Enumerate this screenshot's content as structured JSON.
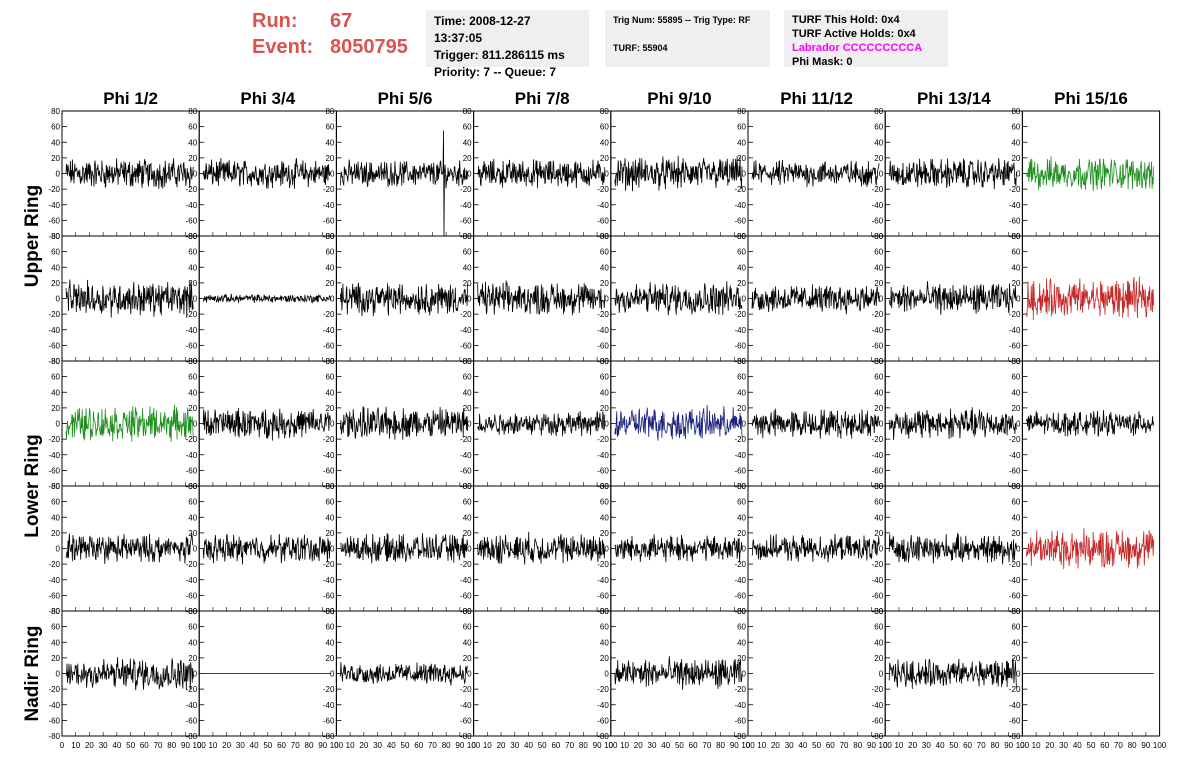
{
  "header": {
    "run_label": "Run:",
    "run_value": "67",
    "event_label": "Event:",
    "event_value": "8050795",
    "run_color": "#d9534f",
    "time": "Time: 2008-12-27 13:37:05",
    "trigger": "Trigger: 811.286115 ms",
    "priority": "Priority: 7 -- Queue: 7",
    "trig_num": "Trig Num: 55895 -- Trig Type: RF",
    "turf": "TURF: 55904",
    "turf_this_hold": "TURF This Hold: 0x4",
    "turf_active_holds": "TURF Active Holds: 0x4",
    "labrador": "Labrador CCCCCCCCCA",
    "labrador_color": "#ff00ff",
    "phi_mask": "Phi Mask: 0"
  },
  "chart_data": {
    "type": "line",
    "columns": [
      "Phi 1/2",
      "Phi 3/4",
      "Phi 5/6",
      "Phi 7/8",
      "Phi 9/10",
      "Phi 11/12",
      "Phi 13/14",
      "Phi 15/16"
    ],
    "ring_labels": [
      {
        "label": "Upper Ring",
        "rows": [
          0,
          1
        ]
      },
      {
        "label": "Lower Ring",
        "rows": [
          2,
          3
        ]
      },
      {
        "label": "Nadir Ring",
        "rows": [
          4,
          4
        ]
      }
    ],
    "ylim": [
      -80,
      80
    ],
    "xlim": [
      0,
      100
    ],
    "yticks": [
      -80,
      -60,
      -40,
      -20,
      0,
      20,
      40,
      60,
      80
    ],
    "xtick_labels": [
      "0",
      "10",
      "20",
      "30",
      "40",
      "50",
      "60",
      "70",
      "80",
      "90",
      "100"
    ],
    "series_colors": {
      "k": "#000000",
      "g": "#1e8f1e",
      "r": "#c62828",
      "b": "#1a237e"
    },
    "panels": [
      [
        {
          "c": "k",
          "a": 14
        },
        {
          "c": "k",
          "a": 13
        },
        {
          "c": "k",
          "a": 12,
          "spike": true
        },
        {
          "c": "k",
          "a": 13
        },
        {
          "c": "k",
          "a": 15
        },
        {
          "c": "k",
          "a": 12
        },
        {
          "c": "k",
          "a": 14
        },
        {
          "c": "g",
          "a": 15
        }
      ],
      [
        {
          "c": "k",
          "a": 16
        },
        {
          "c": "k",
          "a": 4
        },
        {
          "c": "k",
          "a": 15
        },
        {
          "c": "k",
          "a": 15
        },
        {
          "c": "k",
          "a": 15
        },
        {
          "c": "k",
          "a": 13
        },
        {
          "c": "k",
          "a": 14
        },
        {
          "c": "r",
          "a": 18
        }
      ],
      [
        {
          "c": "g",
          "a": 16
        },
        {
          "c": "k",
          "a": 14
        },
        {
          "c": "k",
          "a": 15
        },
        {
          "c": "k",
          "a": 11
        },
        {
          "c": "b",
          "a": 15
        },
        {
          "c": "k",
          "a": 13
        },
        {
          "c": "k",
          "a": 14
        },
        {
          "c": "k",
          "a": 11
        }
      ],
      [
        {
          "c": "k",
          "a": 13
        },
        {
          "c": "k",
          "a": 13
        },
        {
          "c": "k",
          "a": 13
        },
        {
          "c": "k",
          "a": 14
        },
        {
          "c": "k",
          "a": 12
        },
        {
          "c": "k",
          "a": 12
        },
        {
          "c": "k",
          "a": 13
        },
        {
          "c": "r",
          "a": 18
        }
      ],
      [
        {
          "c": "k",
          "a": 15
        },
        {
          "c": "k",
          "a": 0
        },
        {
          "c": "k",
          "a": 10
        },
        {
          "c": null,
          "a": 0
        },
        {
          "c": "k",
          "a": 14
        },
        {
          "c": null,
          "a": 0
        },
        {
          "c": "k",
          "a": 13
        },
        {
          "c": "k",
          "a": 0
        }
      ]
    ]
  }
}
